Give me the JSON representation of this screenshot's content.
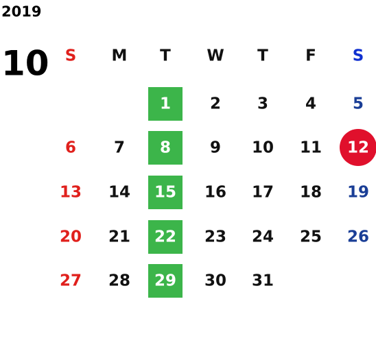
{
  "header": {
    "year": "2019",
    "month": "10"
  },
  "weekdays": [
    "S",
    "M",
    "T",
    "W",
    "T",
    "F",
    "S"
  ],
  "weeks": [
    [
      null,
      null,
      1,
      2,
      3,
      4,
      5
    ],
    [
      6,
      7,
      8,
      9,
      10,
      11,
      12
    ],
    [
      13,
      14,
      15,
      16,
      17,
      18,
      19
    ],
    [
      20,
      21,
      22,
      23,
      24,
      25,
      26
    ],
    [
      27,
      28,
      29,
      30,
      31,
      null,
      null
    ]
  ],
  "style": {
    "text_color": "#111111",
    "sunday_color": "#e0201c",
    "saturday_color": "#1a3e96",
    "highlight_column": 2,
    "highlight_color": "#3cb54a",
    "circled_day": 12,
    "circle_color": "#e0102c"
  }
}
